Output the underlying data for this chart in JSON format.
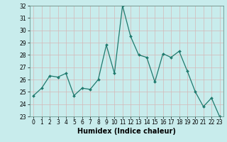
{
  "x": [
    0,
    1,
    2,
    3,
    4,
    5,
    6,
    7,
    8,
    9,
    10,
    11,
    12,
    13,
    14,
    15,
    16,
    17,
    18,
    19,
    20,
    21,
    22,
    23
  ],
  "y": [
    24.7,
    25.3,
    26.3,
    26.2,
    26.5,
    24.7,
    25.3,
    25.2,
    26.0,
    28.8,
    26.5,
    32.0,
    29.5,
    28.0,
    27.8,
    25.8,
    28.1,
    27.8,
    28.3,
    26.7,
    25.0,
    23.8,
    24.5,
    23.0
  ],
  "line_color": "#1f7a6e",
  "marker": "D",
  "marker_size": 2.0,
  "linewidth": 0.9,
  "xlabel": "Humidex (Indice chaleur)",
  "xlim": [
    -0.5,
    23.5
  ],
  "ylim": [
    23,
    32
  ],
  "yticks": [
    23,
    24,
    25,
    26,
    27,
    28,
    29,
    30,
    31,
    32
  ],
  "xticks": [
    0,
    1,
    2,
    3,
    4,
    5,
    6,
    7,
    8,
    9,
    10,
    11,
    12,
    13,
    14,
    15,
    16,
    17,
    18,
    19,
    20,
    21,
    22,
    23
  ],
  "background_color": "#c8ecec",
  "grid_color": "#d4b8b8",
  "tick_label_fontsize": 5.5,
  "xlabel_fontsize": 7.0
}
